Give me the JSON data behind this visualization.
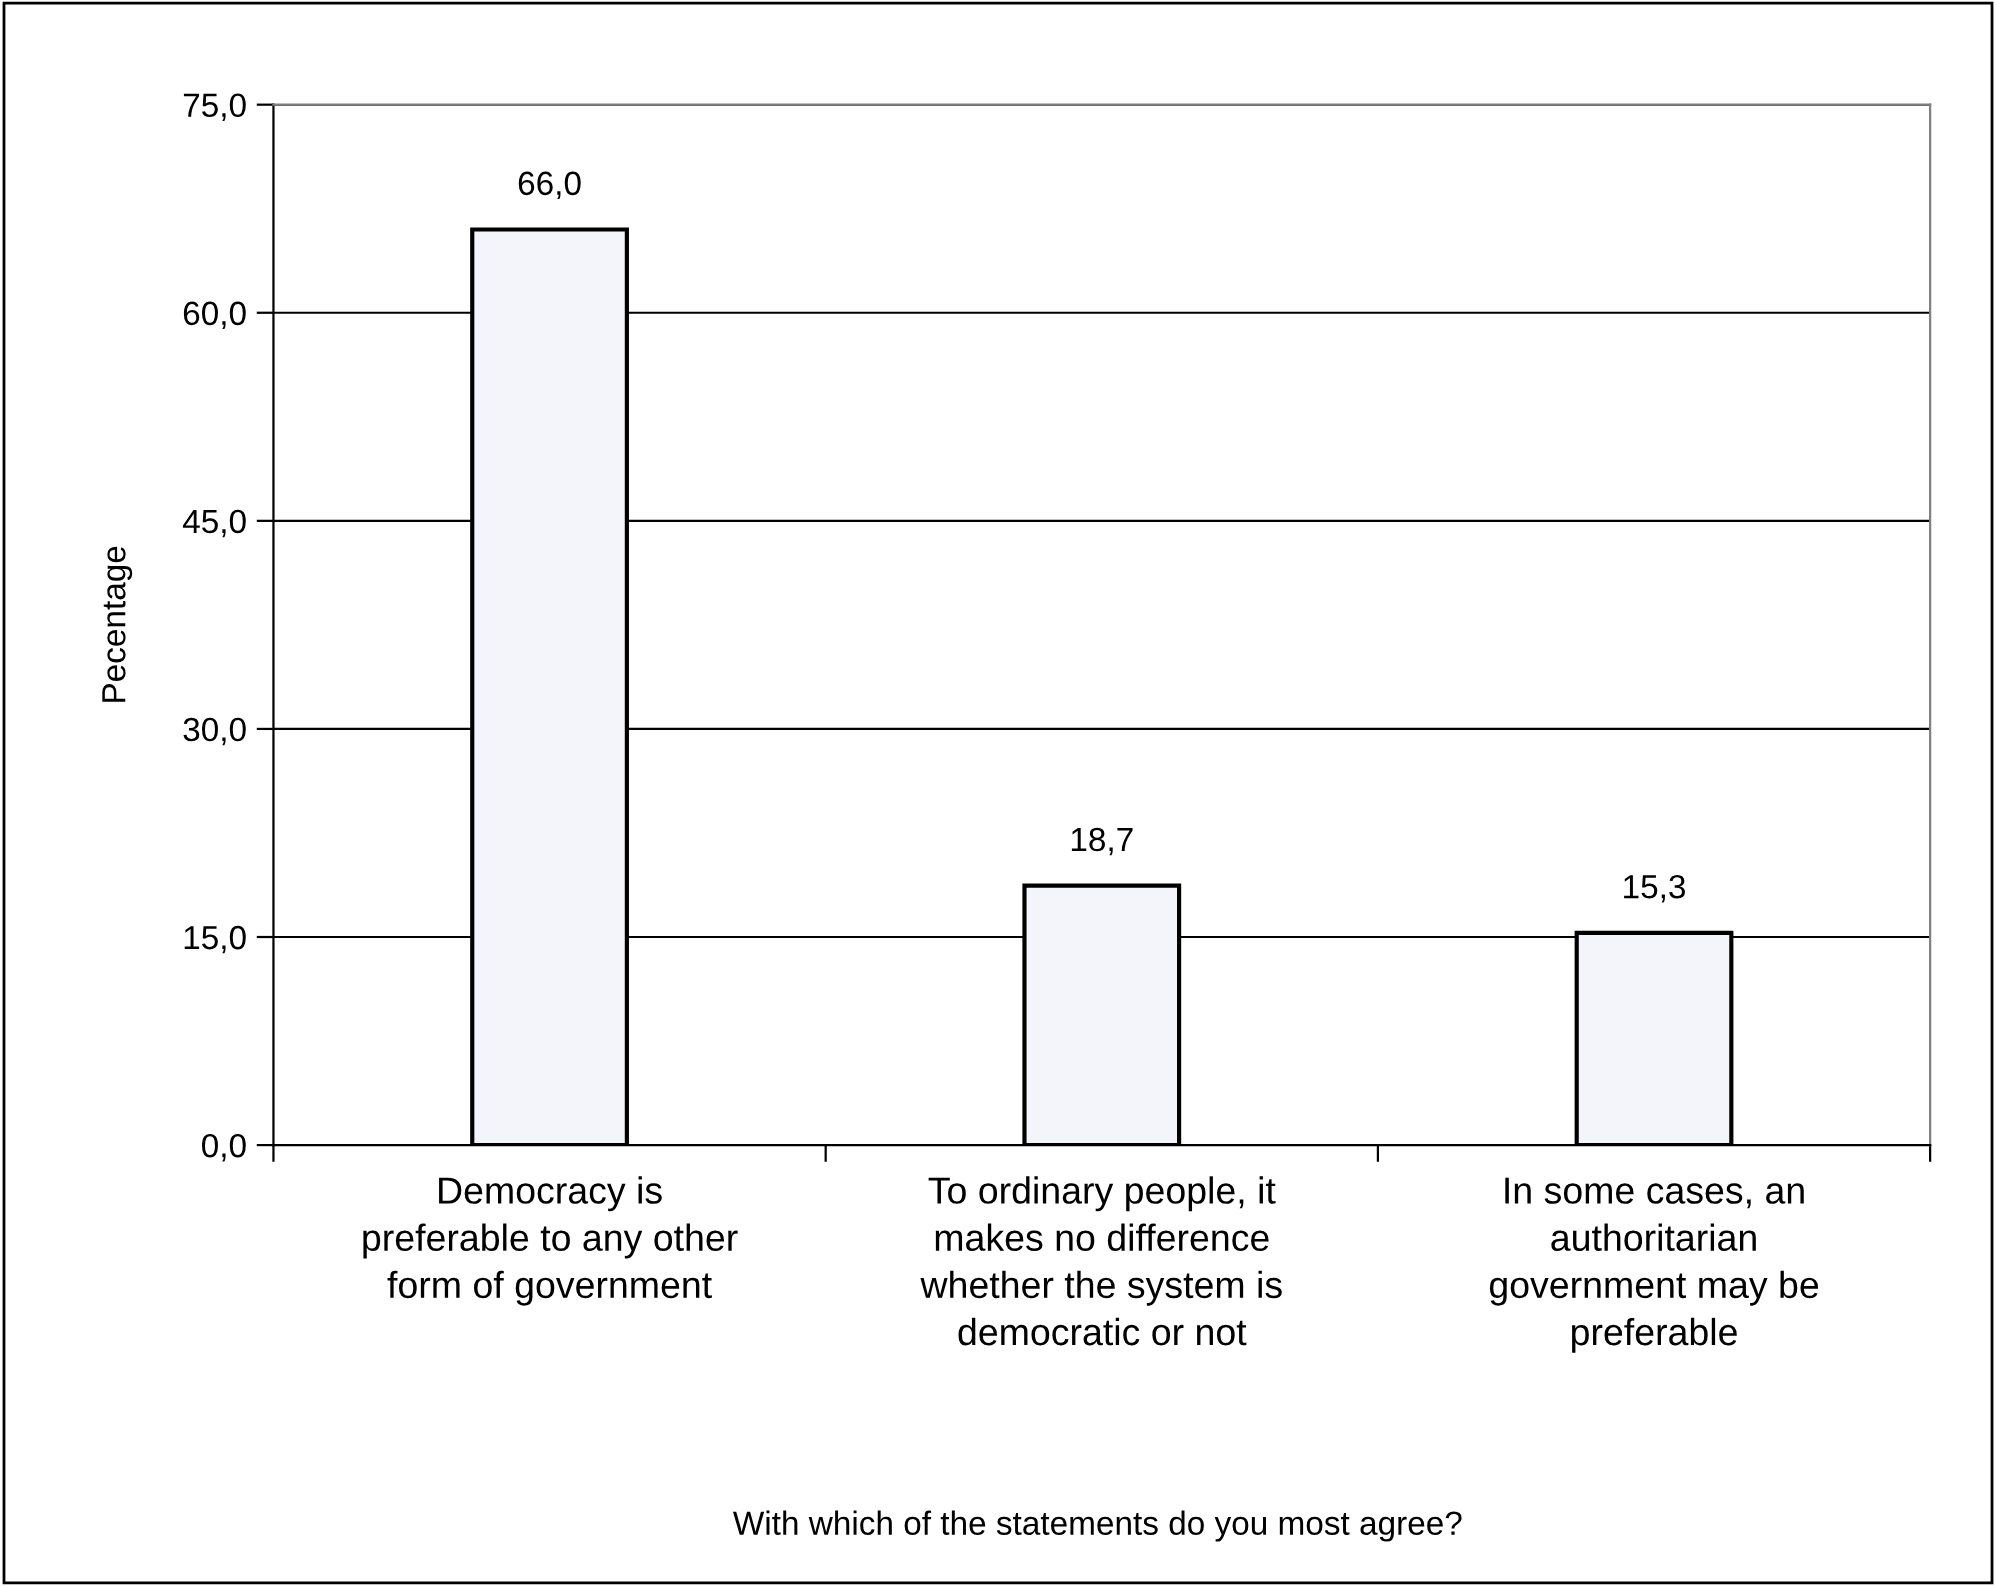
{
  "chart_data": {
    "type": "bar",
    "xlabel": "With which of the statements do you most agree?",
    "ylabel": "Pecentage",
    "categories": [
      "Democracy is\npreferable to any other\nform of government",
      "To ordinary people, it\nmakes no difference\nwhether the system is\ndemocratic or not",
      "In some cases, an\nauthoritarian\ngovernment may be\npreferable"
    ],
    "values": [
      66.0,
      18.7,
      15.3
    ],
    "value_labels": [
      "66,0",
      "18,7",
      "15,3"
    ],
    "color": "#f4f5fa",
    "ylim": [
      0,
      75
    ],
    "yticks": [
      {
        "value": 0,
        "label": "0,0"
      },
      {
        "value": 15,
        "label": "15,0"
      },
      {
        "value": 30,
        "label": "30,0"
      },
      {
        "value": 45,
        "label": "45,0"
      },
      {
        "value": 60,
        "label": "60,0"
      },
      {
        "value": 75,
        "label": "75,0"
      }
    ],
    "grid": "y"
  }
}
